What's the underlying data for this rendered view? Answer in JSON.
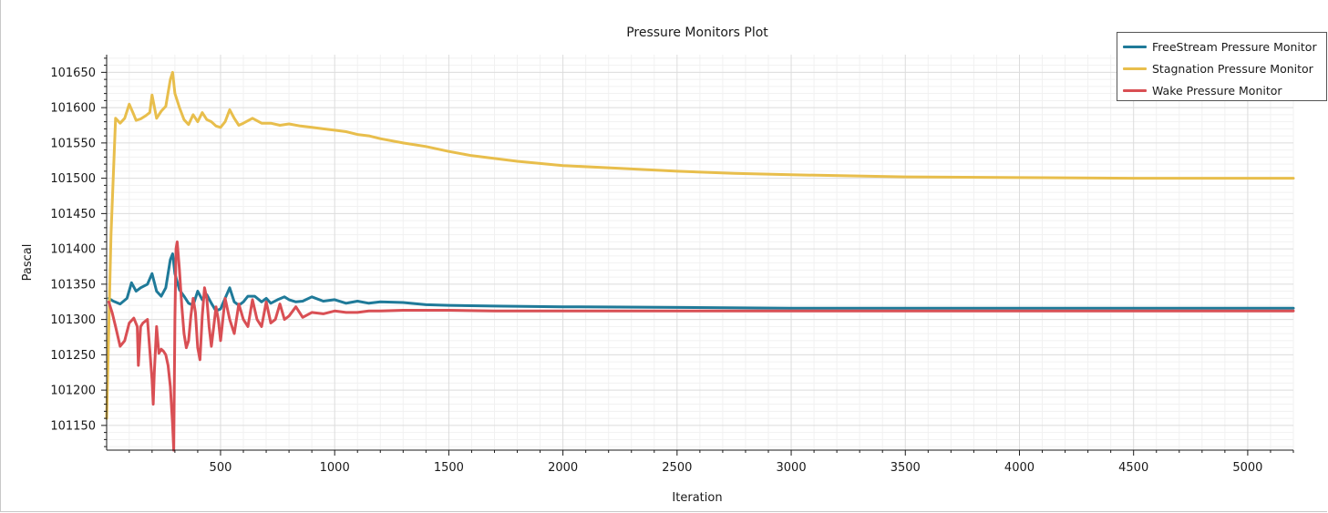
{
  "chart_data": {
    "type": "line",
    "title": "Pressure Monitors Plot",
    "xlabel": "Iteration",
    "ylabel": "Pascal",
    "xlim": [
      1,
      5200
    ],
    "ylim": [
      101115,
      101675
    ],
    "xticks": [
      500,
      1000,
      1500,
      2000,
      2500,
      3000,
      3500,
      4000,
      4500,
      5000
    ],
    "yticks": [
      101150,
      101200,
      101250,
      101300,
      101350,
      101400,
      101450,
      101500,
      101550,
      101600,
      101650
    ],
    "grid": true,
    "legend_position": "top-right",
    "series": [
      {
        "name": "FreeStream Pressure Monitor",
        "color": "#1f7a99",
        "x": [
          10,
          30,
          60,
          90,
          110,
          130,
          150,
          180,
          200,
          220,
          240,
          260,
          280,
          290,
          300,
          320,
          340,
          360,
          380,
          400,
          420,
          440,
          460,
          480,
          500,
          520,
          540,
          560,
          580,
          600,
          620,
          650,
          680,
          700,
          720,
          750,
          780,
          800,
          830,
          860,
          900,
          950,
          1000,
          1050,
          1100,
          1150,
          1200,
          1300,
          1400,
          1500,
          1700,
          2000,
          2500,
          3000,
          4000,
          5200
        ],
        "y": [
          101330,
          101326,
          101322,
          101330,
          101352,
          101340,
          101345,
          101350,
          101365,
          101340,
          101333,
          101345,
          101385,
          101393,
          101365,
          101342,
          101333,
          101323,
          101320,
          101340,
          101328,
          101335,
          101323,
          101312,
          101315,
          101330,
          101345,
          101325,
          101320,
          101325,
          101333,
          101333,
          101325,
          101330,
          101323,
          101328,
          101332,
          101328,
          101325,
          101326,
          101332,
          101326,
          101328,
          101323,
          101326,
          101323,
          101325,
          101324,
          101321,
          101320,
          101319,
          101318,
          101317,
          101316,
          101316,
          101316
        ]
      },
      {
        "name": "Stagnation Pressure Monitor",
        "color": "#e8be4c",
        "x": [
          1,
          20,
          40,
          60,
          80,
          100,
          120,
          130,
          150,
          170,
          190,
          200,
          220,
          240,
          260,
          280,
          290,
          300,
          320,
          340,
          360,
          380,
          400,
          420,
          440,
          460,
          480,
          500,
          520,
          540,
          560,
          580,
          600,
          640,
          680,
          720,
          760,
          800,
          850,
          900,
          950,
          1000,
          1050,
          1100,
          1150,
          1200,
          1300,
          1400,
          1500,
          1600,
          1800,
          2000,
          2250,
          2500,
          2750,
          3000,
          3500,
          4000,
          4500,
          5200
        ],
        "y": [
          101160,
          101420,
          101585,
          101578,
          101585,
          101605,
          101590,
          101582,
          101584,
          101588,
          101593,
          101618,
          101585,
          101595,
          101602,
          101640,
          101650,
          101620,
          101600,
          101583,
          101576,
          101590,
          101580,
          101593,
          101583,
          101580,
          101574,
          101572,
          101580,
          101597,
          101585,
          101575,
          101578,
          101585,
          101578,
          101578,
          101575,
          101577,
          101574,
          101572,
          101570,
          101568,
          101566,
          101562,
          101560,
          101556,
          101550,
          101545,
          101538,
          101532,
          101524,
          101518,
          101514,
          101510,
          101507,
          101505,
          101502,
          101501,
          101500,
          101500
        ]
      },
      {
        "name": "Wake Pressure Monitor",
        "color": "#d94f54",
        "x": [
          10,
          25,
          40,
          60,
          80,
          100,
          120,
          135,
          140,
          150,
          160,
          180,
          200,
          205,
          210,
          220,
          230,
          240,
          250,
          260,
          270,
          280,
          290,
          295,
          300,
          305,
          310,
          320,
          330,
          340,
          350,
          360,
          370,
          380,
          390,
          400,
          410,
          420,
          430,
          440,
          450,
          460,
          470,
          480,
          490,
          500,
          520,
          540,
          560,
          580,
          600,
          620,
          640,
          660,
          680,
          700,
          720,
          740,
          760,
          780,
          800,
          830,
          860,
          900,
          950,
          1000,
          1050,
          1100,
          1150,
          1200,
          1300,
          1400,
          1500,
          1700,
          2000,
          2500,
          3000,
          4000,
          5200
        ],
        "y": [
          101325,
          101310,
          101290,
          101262,
          101270,
          101295,
          101302,
          101290,
          101235,
          101290,
          101295,
          101300,
          101215,
          101180,
          101225,
          101290,
          101252,
          101258,
          101255,
          101250,
          101235,
          101205,
          101150,
          101115,
          101300,
          101400,
          101410,
          101370,
          101320,
          101280,
          101260,
          101270,
          101305,
          101330,
          101310,
          101260,
          101243,
          101305,
          101345,
          101330,
          101290,
          101262,
          101290,
          101318,
          101300,
          101270,
          101330,
          101300,
          101280,
          101322,
          101300,
          101290,
          101328,
          101300,
          101290,
          101325,
          101295,
          101300,
          101322,
          101300,
          101305,
          101318,
          101303,
          101310,
          101308,
          101312,
          101310,
          101310,
          101312,
          101312,
          101313,
          101313,
          101313,
          101312,
          101312,
          101312,
          101312,
          101312,
          101312
        ]
      }
    ]
  }
}
